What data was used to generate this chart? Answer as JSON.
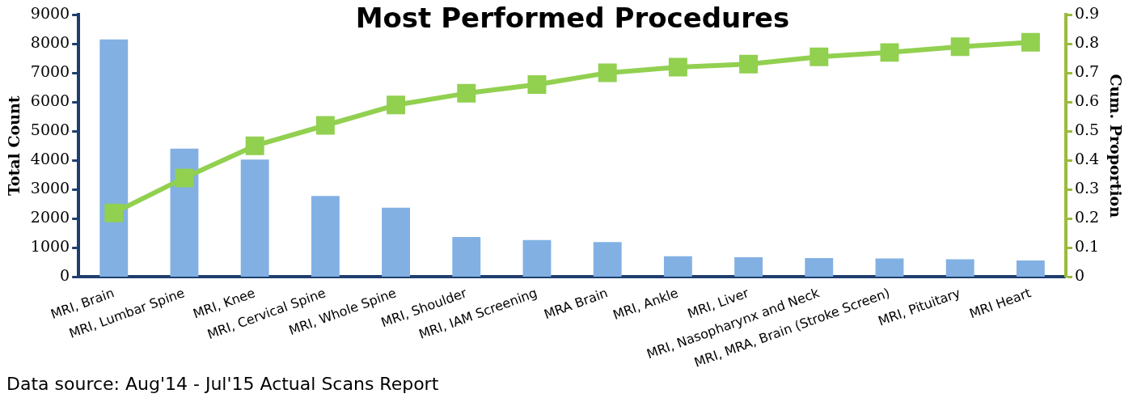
{
  "chart_data": {
    "type": "bar",
    "title": "Most Performed Procedures",
    "ylabel": "Total Count",
    "y2label": "Cum. Proportion",
    "categories": [
      "MRI, Brain",
      "MRI, Lumbar Spine",
      "MRI, Knee",
      "MRI, Cervical Spine",
      "MRI, Whole Spine",
      "MRI, Shoulder",
      "MRI, IAM Screening",
      "MRA Brain",
      "MRI, Ankle",
      "MRI, Liver",
      "MRI, Nasopharynx and Neck",
      "MRI, MRA, Brain (Stroke Screen)",
      "MRI, Pituitary",
      "MRI Heart"
    ],
    "series": [
      {
        "color": "#82b0e3",
        "values": [
          8150,
          4400,
          4030,
          2780,
          2380,
          1370,
          1270,
          1200,
          710,
          680,
          650,
          640,
          610,
          570
        ]
      },
      {
        "type": "line",
        "axis": "y2",
        "color": "#92d050",
        "marker": "square",
        "values": [
          0.22,
          0.34,
          0.45,
          0.52,
          0.59,
          0.63,
          0.66,
          0.7,
          0.72,
          0.73,
          0.755,
          0.77,
          0.79,
          0.805
        ]
      }
    ],
    "ylim": [
      0,
      9000
    ],
    "yticks": [
      0,
      1000,
      2000,
      3000,
      4000,
      5000,
      6000,
      7000,
      8000,
      9000
    ],
    "y2lim": [
      0,
      0.9
    ],
    "y2ticks": [
      0,
      0.1,
      0.2,
      0.3,
      0.4,
      0.5,
      0.6,
      0.7,
      0.8,
      0.9
    ],
    "grid": false,
    "legend": false,
    "annotations": [
      "Data source: Aug'14 - Jul'15 Actual Scans Report"
    ]
  }
}
